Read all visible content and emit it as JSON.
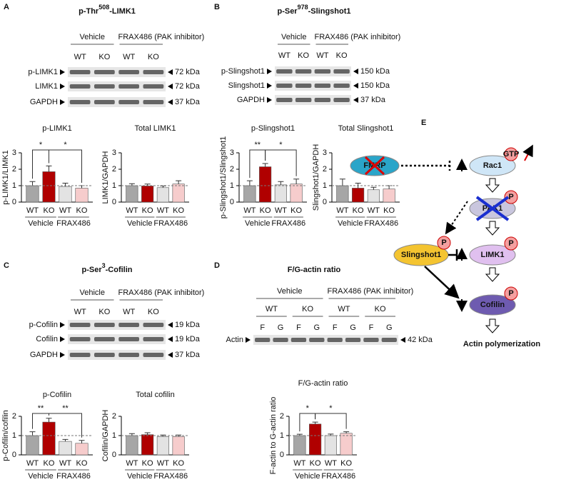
{
  "panels": [
    {
      "letter": "A",
      "title": {
        "prefix": "p-Thr",
        "sup": "508",
        "suffix": "-LIMK1"
      },
      "blot": {
        "groups": [
          "Vehicle",
          "FRAX486 (PAK inhibitor)"
        ],
        "lanes": [
          "WT",
          "KO",
          "WT",
          "KO"
        ],
        "rows": [
          {
            "label": "p-LIMK1",
            "size": "72 kDa"
          },
          {
            "label": "LIMK1",
            "size": "72 kDa"
          },
          {
            "label": "GAPDH",
            "size": "37 kDa"
          }
        ]
      }
    },
    {
      "letter": "B",
      "title": {
        "prefix": "p-Ser",
        "sup": "978",
        "suffix": "-Slingshot1"
      },
      "blot": {
        "groups": [
          "Vehicle",
          "FRAX486 (PAK inhibitor)"
        ],
        "lanes": [
          "WT",
          "KO",
          "WT",
          "KO"
        ],
        "rows": [
          {
            "label": "p-Slingshot1",
            "size": "150 kDa"
          },
          {
            "label": "Slingshot1",
            "size": "150 kDa"
          },
          {
            "label": "GAPDH",
            "size": "37 kDa"
          }
        ]
      }
    },
    {
      "letter": "C",
      "title": {
        "prefix": "p-Ser",
        "sup": "3",
        "suffix": "-Cofilin"
      },
      "blot": {
        "groups": [
          "Vehicle",
          "FRAX486 (PAK inhibitor)"
        ],
        "lanes": [
          "WT",
          "KO",
          "WT",
          "KO"
        ],
        "rows": [
          {
            "label": "p-Cofilin",
            "size": "19 kDa"
          },
          {
            "label": "Cofilin",
            "size": "19 kDa"
          },
          {
            "label": "GAPDH",
            "size": "37 kDa"
          }
        ]
      }
    },
    {
      "letter": "D",
      "title": {
        "prefix": "F/G-actin ratio"
      },
      "blot": {
        "groups": [
          "Vehicle",
          "FRAX486 (PAK inhibitor)"
        ],
        "genotypes": [
          "WT",
          "KO",
          "WT",
          "KO"
        ],
        "lanes": [
          "F",
          "G",
          "F",
          "G",
          "F",
          "G",
          "F",
          "G"
        ],
        "rows": [
          {
            "label": "Actin",
            "size": "42 kDa"
          }
        ]
      }
    }
  ],
  "chart_data": [
    {
      "type": "bar",
      "title": "p-LIMK1",
      "y_label": "p-LIMK1/LIMK1",
      "categories": [
        "WT",
        "KO",
        "WT",
        "KO"
      ],
      "groups": [
        "Vehicle",
        "FRAX486"
      ],
      "values": [
        1.0,
        1.85,
        0.95,
        0.85
      ],
      "errors": [
        0.25,
        0.35,
        0.2,
        0.15
      ],
      "colors": [
        "#a6a6a6",
        "#b00000",
        "#e3e3e3",
        "#f6cccc"
      ],
      "ylim": [
        0,
        3
      ],
      "yticks": [
        0,
        1,
        2,
        3
      ],
      "reference_line": 1,
      "annotations": [
        "*",
        "*"
      ]
    },
    {
      "type": "bar",
      "title": "Total LIMK1",
      "y_label": "LIMK1/GAPDH",
      "categories": [
        "WT",
        "KO",
        "WT",
        "KO"
      ],
      "groups": [
        "Vehicle",
        "FRAX486"
      ],
      "values": [
        1.0,
        0.98,
        0.88,
        1.1
      ],
      "errors": [
        0.12,
        0.12,
        0.1,
        0.2
      ],
      "colors": [
        "#a6a6a6",
        "#b00000",
        "#e3e3e3",
        "#f6cccc"
      ],
      "ylim": [
        0,
        3
      ],
      "yticks": [
        0,
        1,
        2,
        3
      ],
      "reference_line": 1,
      "annotations": []
    },
    {
      "type": "bar",
      "title": "p-Slingshot1",
      "y_label": "p-Slingshot1/Slingshot1",
      "categories": [
        "WT",
        "KO",
        "WT",
        "KO"
      ],
      "groups": [
        "Vehicle",
        "FRAX486"
      ],
      "values": [
        1.0,
        2.15,
        1.05,
        1.1
      ],
      "errors": [
        0.3,
        0.2,
        0.2,
        0.3
      ],
      "colors": [
        "#a6a6a6",
        "#b00000",
        "#e3e3e3",
        "#f6cccc"
      ],
      "ylim": [
        0,
        3
      ],
      "yticks": [
        0,
        1,
        2,
        3
      ],
      "reference_line": 1,
      "annotations": [
        "**",
        "*"
      ]
    },
    {
      "type": "bar",
      "title": "Total Slingshot1",
      "y_label": "Slingshot1/GAPDH",
      "categories": [
        "WT",
        "KO",
        "WT",
        "KO"
      ],
      "groups": [
        "Vehicle",
        "FRAX486"
      ],
      "values": [
        1.0,
        0.85,
        0.75,
        0.8
      ],
      "errors": [
        0.4,
        0.3,
        0.15,
        0.2
      ],
      "colors": [
        "#a6a6a6",
        "#b00000",
        "#e3e3e3",
        "#f6cccc"
      ],
      "ylim": [
        0,
        3
      ],
      "yticks": [
        0,
        1,
        2,
        3
      ],
      "reference_line": 1,
      "annotations": []
    },
    {
      "type": "bar",
      "title": "p-Cofilin",
      "y_label": "p-Cofilin/cofilin",
      "categories": [
        "WT",
        "KO",
        "WT",
        "KO"
      ],
      "groups": [
        "Vehicle",
        "FRAX486"
      ],
      "values": [
        1.0,
        1.7,
        0.7,
        0.6
      ],
      "errors": [
        0.2,
        0.2,
        0.1,
        0.15
      ],
      "colors": [
        "#a6a6a6",
        "#b00000",
        "#e3e3e3",
        "#f6cccc"
      ],
      "ylim": [
        0,
        2
      ],
      "yticks": [
        0,
        1,
        2
      ],
      "reference_line": 1,
      "annotations": [
        "**",
        "**"
      ]
    },
    {
      "type": "bar",
      "title": "Total cofilin",
      "y_label": "Cofilin/GAPDH",
      "categories": [
        "WT",
        "KO",
        "WT",
        "KO"
      ],
      "groups": [
        "Vehicle",
        "FRAX486"
      ],
      "values": [
        1.0,
        1.05,
        0.95,
        0.95
      ],
      "errors": [
        0.1,
        0.1,
        0.08,
        0.08
      ],
      "colors": [
        "#a6a6a6",
        "#b00000",
        "#e3e3e3",
        "#f6cccc"
      ],
      "ylim": [
        0,
        2
      ],
      "yticks": [
        0,
        1,
        2
      ],
      "reference_line": 1,
      "annotations": []
    },
    {
      "type": "bar",
      "title": "F/G-actin ratio",
      "y_label": "F-actin to G-actin ratio",
      "categories": [
        "WT",
        "KO",
        "WT",
        "KO"
      ],
      "groups": [
        "Vehicle",
        "FRAX486"
      ],
      "values": [
        1.0,
        1.6,
        1.0,
        1.12
      ],
      "errors": [
        0.07,
        0.1,
        0.08,
        0.08
      ],
      "colors": [
        "#a6a6a6",
        "#b00000",
        "#e3e3e3",
        "#f6cccc"
      ],
      "ylim": [
        0,
        2
      ],
      "yticks": [
        0,
        1,
        2
      ],
      "reference_line": 1,
      "annotations": [
        "*",
        "*"
      ]
    }
  ],
  "diagram": {
    "letter": "E",
    "nodes": [
      {
        "label": "FMRP"
      },
      {
        "label": "Rac1",
        "badge": "GTP"
      },
      {
        "label": "PAK1",
        "badge": "P"
      },
      {
        "label": "Slingshot1",
        "badge": "P"
      },
      {
        "label": "LIMK1",
        "badge": "P"
      },
      {
        "label": "Cofilin",
        "badge": "P"
      }
    ],
    "output": "Actin polymerization"
  }
}
